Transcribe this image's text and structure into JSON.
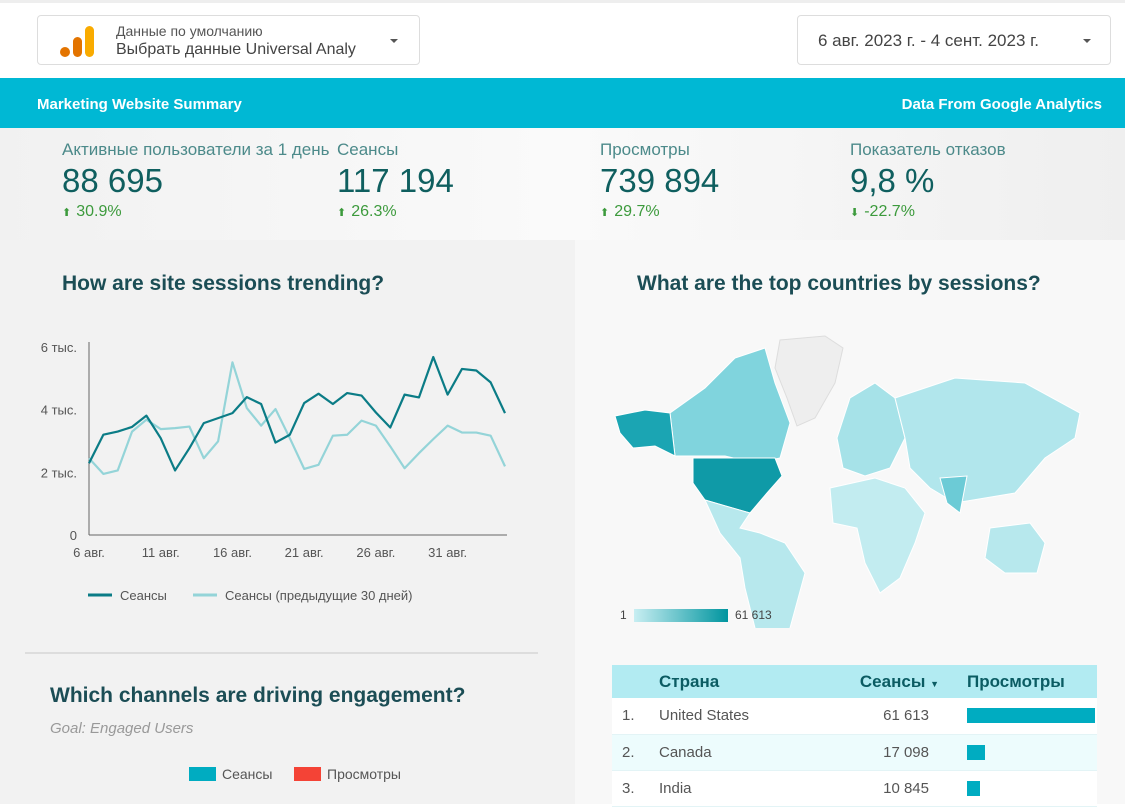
{
  "datasource": {
    "label": "Данные по умолчанию",
    "value": "Выбрать данные Universal Analy"
  },
  "date_range": "6 авг. 2023 г. - 4 сент. 2023 г.",
  "banner": {
    "title": "Marketing Website Summary",
    "source": "Data From Google Analytics"
  },
  "kpis": [
    {
      "label": "Активные пользователи за 1 день",
      "value": "88 695",
      "delta": "30.9%",
      "dir": "up"
    },
    {
      "label": "Сеансы",
      "value": "117 194",
      "delta": "26.3%",
      "dir": "up"
    },
    {
      "label": "Просмотры",
      "value": "739 894",
      "delta": "29.7%",
      "dir": "up"
    },
    {
      "label": "Показатель отказов",
      "value": "9,8 %",
      "delta": "-22.7%",
      "dir": "down"
    }
  ],
  "trend": {
    "title": "How are site sessions trending?"
  },
  "map": {
    "title": "What are the top countries by sessions?",
    "scale_min": "1",
    "scale_max": "61 613"
  },
  "channels": {
    "title": "Which channels are driving engagement?",
    "subtitle": "Goal: Engaged Users",
    "legend": [
      {
        "label": "Сеансы",
        "color": "#00acc1"
      },
      {
        "label": "Просмотры",
        "color": "#f44336"
      }
    ]
  },
  "table": {
    "headers": [
      "Страна",
      "Сеансы",
      "Просмотры"
    ],
    "rows": [
      {
        "rank": "1.",
        "country": "United States",
        "sessions": "61 613",
        "pageviews_fraction": 1.0
      },
      {
        "rank": "2.",
        "country": "Canada",
        "sessions": "17 098",
        "pageviews_fraction": 0.14
      },
      {
        "rank": "3.",
        "country": "India",
        "sessions": "10 845",
        "pageviews_fraction": 0.1
      }
    ]
  },
  "chart_data": {
    "type": "line",
    "title": "How are site sessions trending?",
    "x_ticks": [
      "6 авг.",
      "11 авг.",
      "16 авг.",
      "21 авг.",
      "26 авг.",
      "31 авг."
    ],
    "y_ticks": [
      "0",
      "2 тыс.",
      "4 тыс.",
      "6 тыс."
    ],
    "ylim": [
      0,
      6000
    ],
    "x": [
      "6 авг.",
      "7 авг.",
      "8 авг.",
      "9 авг.",
      "10 авг.",
      "11 авг.",
      "12 авг.",
      "13 авг.",
      "14 авг.",
      "15 авг.",
      "16 авг.",
      "17 авг.",
      "18 авг.",
      "19 авг.",
      "20 авг.",
      "21 авг.",
      "22 авг.",
      "23 авг.",
      "24 авг.",
      "25 авг.",
      "26 авг.",
      "27 авг.",
      "28 авг.",
      "29 авг.",
      "30 авг.",
      "31 авг.",
      "1 сент.",
      "2 сент.",
      "3 сент.",
      "4 сент."
    ],
    "series": [
      {
        "name": "Сеансы",
        "color": "#0b7c86",
        "values": [
          2290,
          3200,
          3300,
          3450,
          3810,
          3090,
          2060,
          2770,
          3570,
          3730,
          3890,
          4400,
          4180,
          2950,
          3200,
          4210,
          4510,
          4180,
          4530,
          4450,
          3910,
          3430,
          4480,
          4390,
          5680,
          4480,
          5300,
          5250,
          4870,
          3890
        ]
      },
      {
        "name": "Сеансы (предыдущие 30 дней)",
        "color": "#94d4d8",
        "values": [
          2450,
          1950,
          2060,
          3300,
          3680,
          3380,
          3410,
          3460,
          2450,
          2990,
          5510,
          4050,
          3490,
          4020,
          3090,
          2110,
          2240,
          3170,
          3200,
          3650,
          3490,
          2830,
          2130,
          2610,
          3060,
          3490,
          3270,
          3270,
          3170,
          2190
        ]
      }
    ],
    "legend": "bottom"
  }
}
